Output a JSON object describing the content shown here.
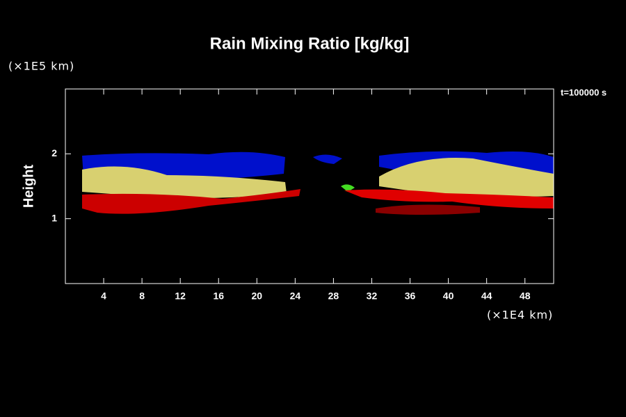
{
  "chart_data": {
    "type": "field",
    "title": "Rain Mixing Ratio [kg/kg]",
    "y_label": "Height",
    "y_unit": "(×1E5 km)",
    "x_unit": "(×1E4 km)",
    "annotation": "t=100000 s",
    "xlim": [
      0,
      51
    ],
    "xticks": [
      4,
      8,
      12,
      16,
      20,
      24,
      28,
      32,
      36,
      40,
      44,
      48
    ],
    "ylim": [
      0,
      3
    ],
    "yticks": [
      1,
      2
    ]
  }
}
